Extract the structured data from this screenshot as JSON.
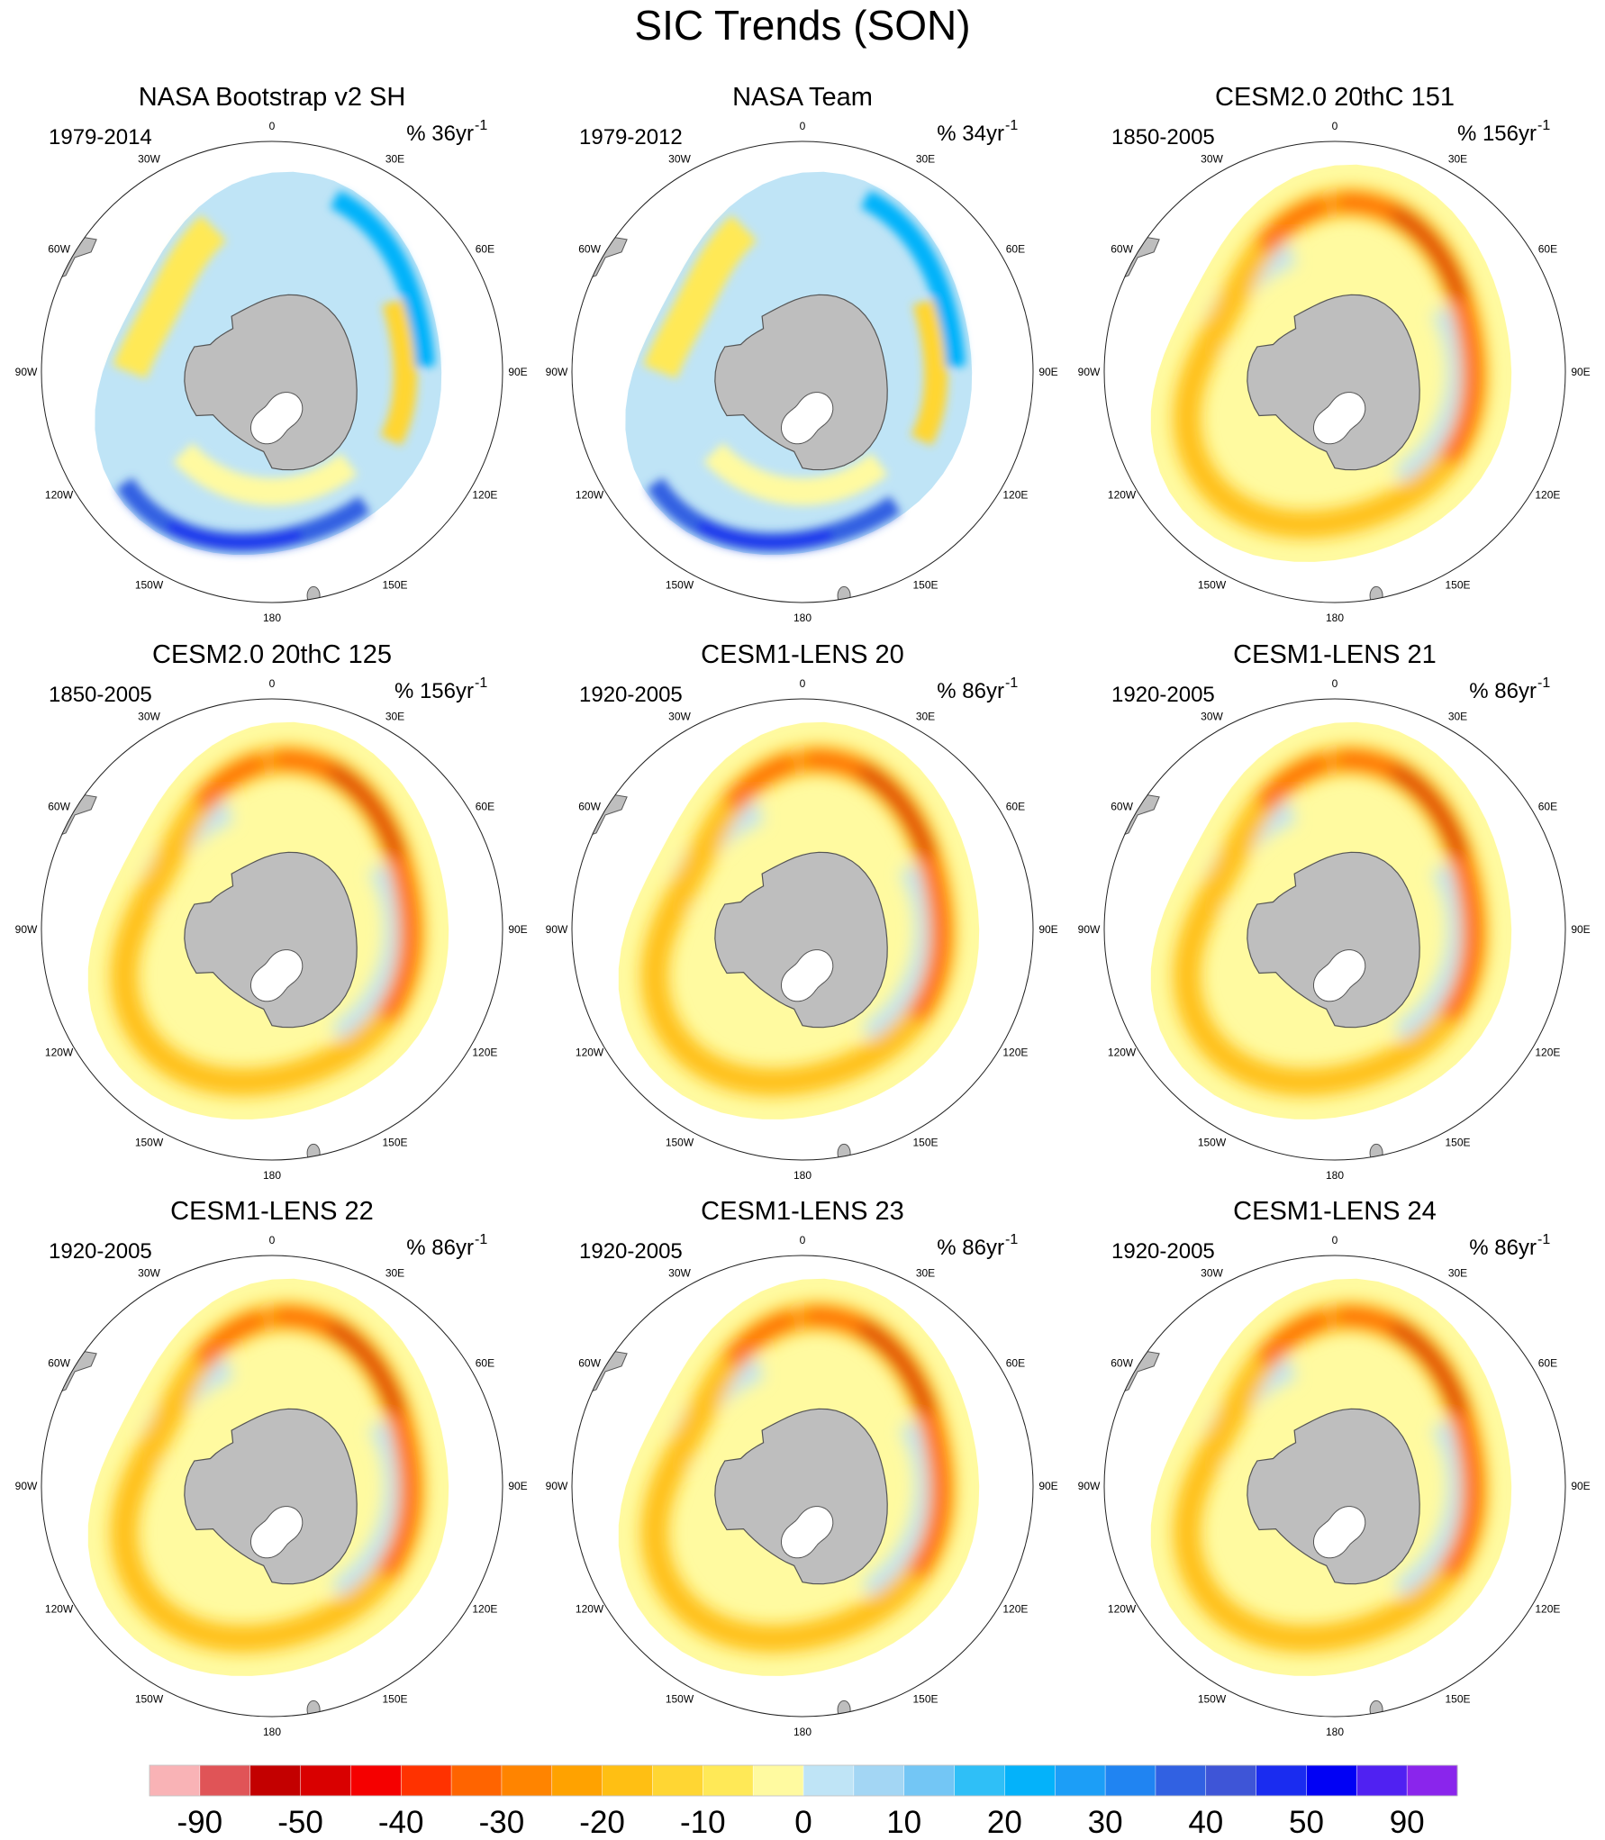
{
  "chart_data": {
    "type": "heatmap",
    "title": "SIC Trends (SON)",
    "projection": "south-polar-stereographic",
    "lon_labels": [
      "0",
      "30E",
      "60E",
      "90E",
      "120E",
      "150E",
      "180",
      "150W",
      "120W",
      "90W",
      "60W",
      "30W"
    ],
    "panels": [
      {
        "title": "NASA Bootstrap v2 SH",
        "period": "1979-2014",
        "units": "% 36yr",
        "units_exp": "-1",
        "pattern": "obs"
      },
      {
        "title": "NASA Team",
        "period": "1979-2012",
        "units": "% 34yr",
        "units_exp": "-1",
        "pattern": "obs"
      },
      {
        "title": "CESM2.0 20thC 151",
        "period": "1850-2005",
        "units": "% 156yr",
        "units_exp": "-1",
        "pattern": "model"
      },
      {
        "title": "CESM2.0 20thC 125",
        "period": "1850-2005",
        "units": "% 156yr",
        "units_exp": "-1",
        "pattern": "model"
      },
      {
        "title": "CESM1-LENS 20",
        "period": "1920-2005",
        "units": "% 86yr",
        "units_exp": "-1",
        "pattern": "model"
      },
      {
        "title": "CESM1-LENS 21",
        "period": "1920-2005",
        "units": "% 86yr",
        "units_exp": "-1",
        "pattern": "model"
      },
      {
        "title": "CESM1-LENS 22",
        "period": "1920-2005",
        "units": "% 86yr",
        "units_exp": "-1",
        "pattern": "model"
      },
      {
        "title": "CESM1-LENS 23",
        "period": "1920-2005",
        "units": "% 86yr",
        "units_exp": "-1",
        "pattern": "model"
      },
      {
        "title": "CESM1-LENS 24",
        "period": "1920-2005",
        "units": "% 86yr",
        "units_exp": "-1",
        "pattern": "model"
      }
    ],
    "colorbar": {
      "colors": [
        "#f9b3b6",
        "#e05457",
        "#c30000",
        "#d90000",
        "#f50000",
        "#ff3200",
        "#ff6400",
        "#ff8400",
        "#ffa200",
        "#ffbf13",
        "#ffd633",
        "#ffe957",
        "#fffaa0",
        "#bfe4f6",
        "#a3d6f4",
        "#73c6f5",
        "#2fbff7",
        "#04b2fa",
        "#1c9ef7",
        "#2084f2",
        "#3161e2",
        "#3e55d7",
        "#1a2cf0",
        "#0101f5",
        "#5021f2",
        "#8a25ec"
      ],
      "labels": [
        "-90",
        "-50",
        "-40",
        "-30",
        "-20",
        "-10",
        "0",
        "10",
        "20",
        "30",
        "40",
        "50",
        "90"
      ]
    }
  }
}
